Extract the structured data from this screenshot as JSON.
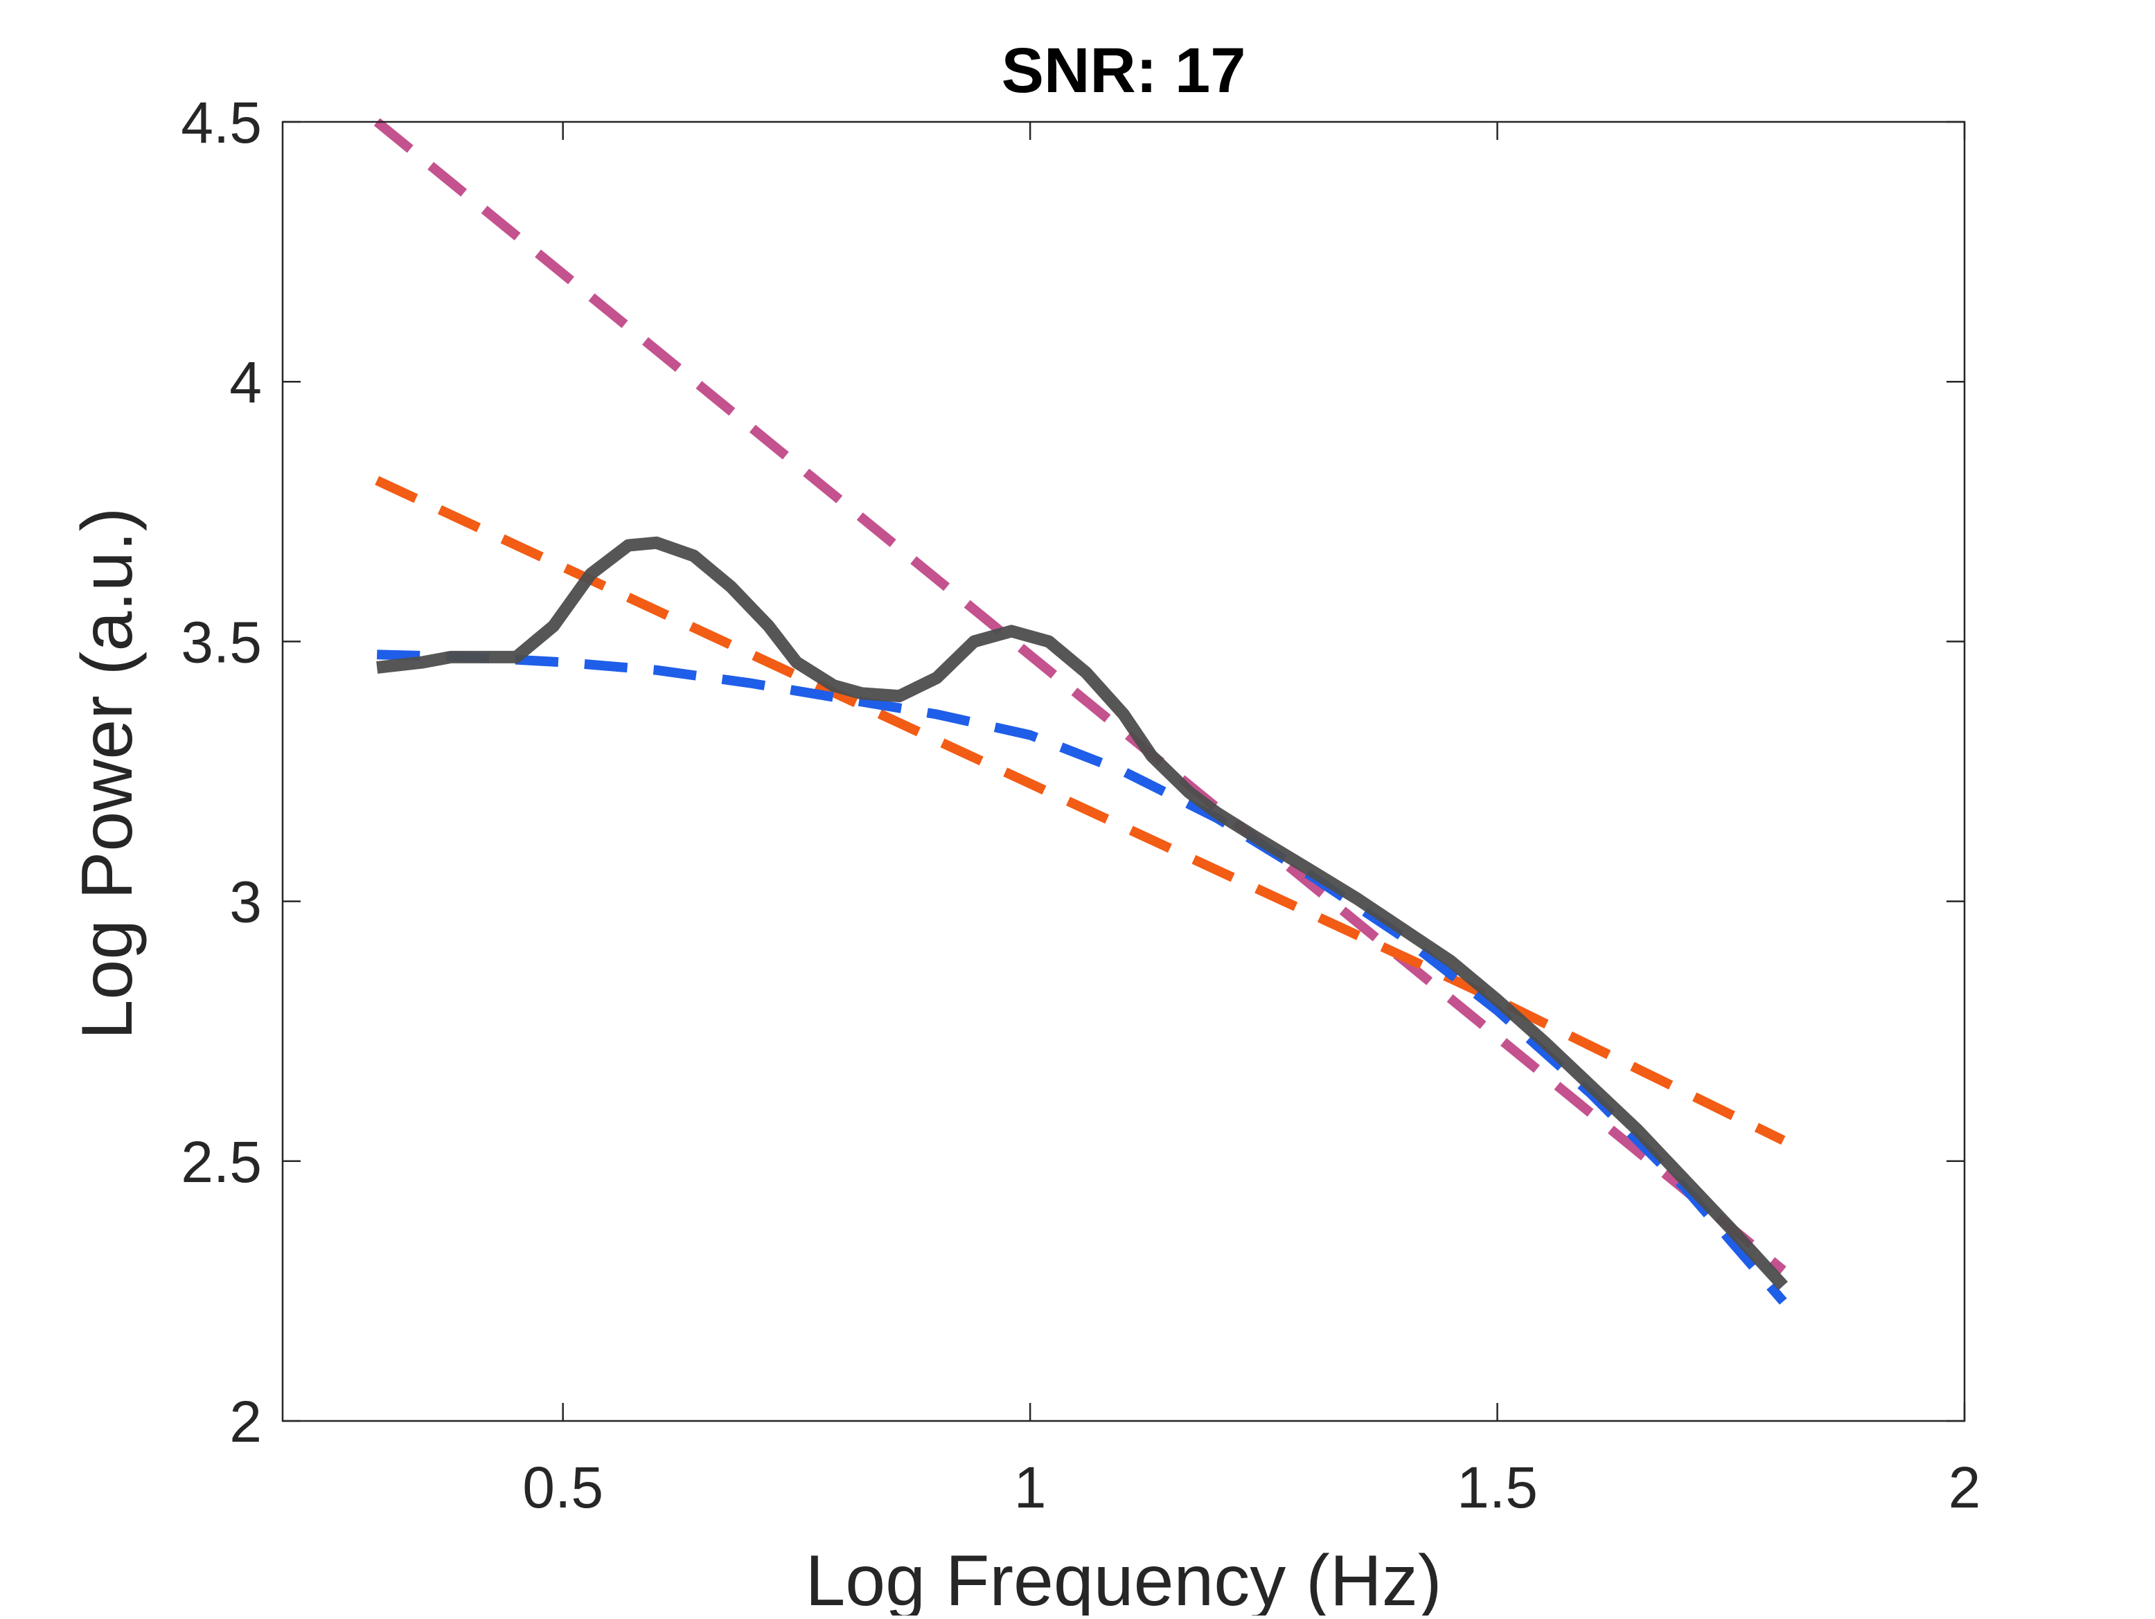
{
  "chart_data": {
    "type": "line",
    "title": "SNR: 17",
    "xlabel": "Log Frequency (Hz)",
    "ylabel": "Log Power (a.u.)",
    "xlim": [
      0.2,
      2.0
    ],
    "ylim": [
      2.0,
      4.5
    ],
    "xticks": [
      0.5,
      1,
      1.5,
      2
    ],
    "xtick_labels": [
      "0.5",
      "1",
      "1.5",
      "2"
    ],
    "yticks": [
      2,
      2.5,
      3,
      3.5,
      4,
      4.5
    ],
    "ytick_labels": [
      "2",
      "2.5",
      "3",
      "3.5",
      "4",
      "4.5"
    ],
    "grid": false,
    "legend": "none",
    "series": [
      {
        "style": "dashed",
        "color": "#c4528e",
        "x": [
          0.301,
          1.806
        ],
        "y": [
          4.5,
          2.29
        ]
      },
      {
        "style": "dashed",
        "color": "#f25c15",
        "x": [
          0.301,
          0.6,
          0.9,
          1.2,
          1.5,
          1.806
        ],
        "y": [
          3.81,
          3.56,
          3.31,
          3.06,
          2.81,
          2.54
        ]
      },
      {
        "style": "dashed",
        "color": "#1f5ee8",
        "x": [
          0.301,
          0.4,
          0.5,
          0.6,
          0.7,
          0.8,
          0.9,
          1.0,
          1.1,
          1.2,
          1.3,
          1.4,
          1.5,
          1.6,
          1.7,
          1.806
        ],
        "y": [
          3.475,
          3.47,
          3.46,
          3.445,
          3.42,
          3.39,
          3.36,
          3.32,
          3.25,
          3.16,
          3.05,
          2.93,
          2.79,
          2.63,
          2.45,
          2.23
        ]
      },
      {
        "style": "solid",
        "color": "#4d4d4d",
        "x": [
          0.301,
          0.35,
          0.38,
          0.42,
          0.45,
          0.49,
          0.53,
          0.57,
          0.6,
          0.64,
          0.68,
          0.72,
          0.75,
          0.79,
          0.82,
          0.86,
          0.9,
          0.94,
          0.98,
          1.02,
          1.06,
          1.1,
          1.13,
          1.17,
          1.2,
          1.24,
          1.3,
          1.35,
          1.4,
          1.45,
          1.5,
          1.55,
          1.6,
          1.65,
          1.7,
          1.75,
          1.806
        ],
        "y": [
          3.45,
          3.46,
          3.47,
          3.47,
          3.47,
          3.53,
          3.63,
          3.685,
          3.69,
          3.665,
          3.605,
          3.53,
          3.46,
          3.415,
          3.4,
          3.395,
          3.43,
          3.5,
          3.52,
          3.5,
          3.44,
          3.36,
          3.28,
          3.21,
          3.17,
          3.125,
          3.06,
          3.005,
          2.945,
          2.885,
          2.81,
          2.73,
          2.645,
          2.56,
          2.465,
          2.37,
          2.26
        ]
      }
    ]
  }
}
